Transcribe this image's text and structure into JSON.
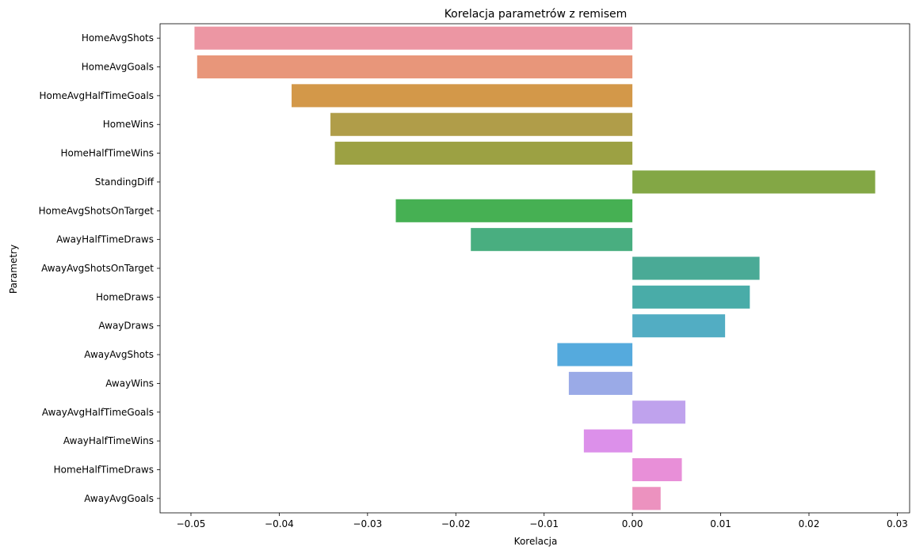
{
  "chart_data": {
    "type": "bar",
    "orientation": "horizontal",
    "title": "Korelacja parametrów z remisem",
    "xlabel": "Korelacja",
    "ylabel": "Parametry",
    "xlim": [
      -0.0535,
      0.0314
    ],
    "xticks": [
      -0.05,
      -0.04,
      -0.03,
      -0.02,
      -0.01,
      0.0,
      0.01,
      0.02,
      0.03
    ],
    "xtick_labels": [
      "−0.05",
      "−0.04",
      "−0.03",
      "−0.02",
      "−0.01",
      "0.00",
      "0.01",
      "0.02",
      "0.03"
    ],
    "grid": false,
    "legend": false,
    "categories": [
      "HomeAvgShots",
      "HomeAvgGoals",
      "HomeAvgHalfTimeGoals",
      "HomeWins",
      "HomeHalfTimeWins",
      "StandingDiff",
      "HomeAvgShotsOnTarget",
      "AwayHalfTimeDraws",
      "AwayAvgShotsOnTarget",
      "HomeDraws",
      "AwayDraws",
      "AwayAvgShots",
      "AwayWins",
      "AwayAvgHalfTimeGoals",
      "AwayHalfTimeWins",
      "HomeHalfTimeDraws",
      "AwayAvgGoals"
    ],
    "values": [
      -0.0496,
      -0.0493,
      -0.0386,
      -0.0342,
      -0.0337,
      0.0275,
      -0.0268,
      -0.0183,
      0.0144,
      0.0133,
      0.0105,
      -0.0085,
      -0.0072,
      0.006,
      -0.0055,
      0.0056,
      0.0032
    ],
    "colors": [
      "#ec96a3",
      "#e8967a",
      "#d39849",
      "#b09d49",
      "#9ca143",
      "#83a745",
      "#46b053",
      "#49ae80",
      "#4aaa96",
      "#49aca8",
      "#52adc3",
      "#55aadd",
      "#9aaae7",
      "#bfa2ed",
      "#dc90ea",
      "#e88fd8",
      "#ec92bf"
    ]
  }
}
